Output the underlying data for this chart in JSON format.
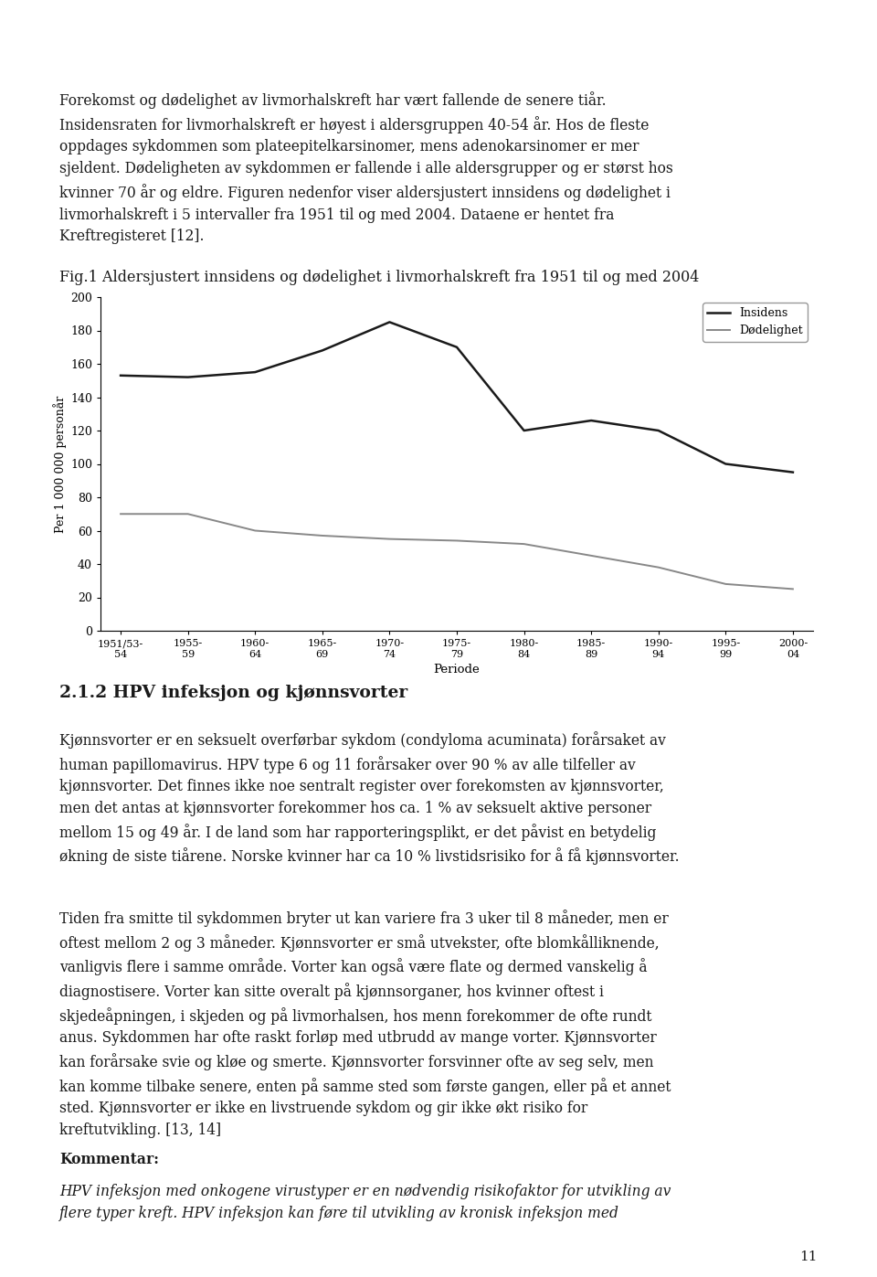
{
  "page_title_lines": [
    "Forekomst og dødelighet av livmorhalskreft har vært fallende de senere tiår.",
    "Insidensraten for livmorhalskreft er høyest i aldersgruppen 40-54 år. Hos de fleste",
    "oppdages sykdommen som plateepitelkarsinomer, mens adenokarsinomer er mer",
    "sjeldent. Dødeligheten av sykdommen er fallende i alle aldersgrupper og er størst hos",
    "kvinner 70 år og eldre. Figuren nedenfor viser aldersjustert innsidens og dødelighet i",
    "livmorhalskreft i 5 intervaller fra 1951 til og med 2004. Dataene er hentet fra",
    "Kreftregisteret [12]."
  ],
  "fig_title": "Fig.1 Aldersjustert innsidens og dødelighet i livmorhalskreft fra 1951 til og med 2004",
  "ylabel": "Per 1 000 000 personår",
  "xlabel": "Periode",
  "ylim": [
    0,
    200
  ],
  "yticks": [
    0,
    20,
    40,
    60,
    80,
    100,
    120,
    140,
    160,
    180,
    200
  ],
  "x_labels": [
    "1951/53-\n54",
    "1955-\n59",
    "1960-\n64",
    "1965-\n69",
    "1970-\n74",
    "1975-\n79",
    "1980-\n84",
    "1985-\n89",
    "1990-\n94",
    "1995-\n99",
    "2000-\n04"
  ],
  "insidens": [
    153,
    152,
    155,
    168,
    185,
    170,
    120,
    126,
    120,
    100,
    95
  ],
  "dodelighet": [
    70,
    70,
    60,
    57,
    55,
    54,
    52,
    45,
    38,
    28,
    25
  ],
  "insidens_color": "#1a1a1a",
  "dodelighet_color": "#888888",
  "legend_insidens": "Insidens",
  "legend_dodelighet": "Dødelighet",
  "section_title": "2.1.2 HPV infeksjon og kjønnsvorter",
  "body_text1_pre": "Kjønnsvorter er en seksuelt overførbar sykdom (condyloma acuminata) forårsaket av\nhuman papillomavirus. HPV type 6 og 11 forårsaker over 90 % av alle tilfeller av\nkjønnsvorter. Det finnes ikke noe sentralt register over forekomsten av kjønnsvorter,\nmen det antas at ",
  "body_text1_italic": "kjønnsvorter",
  "body_text1_post": " forekommer hos ca. 1 % av seksuelt aktive personer\nmellom 15 og 49 år. I de land som har rapporteringsplikt, er det påvist en betydelig\nøkning de siste tiårene. Norske kvinner har ca 10 % livstidsrisiko for å få kjønnsvorter.",
  "body_text2": "Tiden fra smitte til sykdommen bryter ut kan variere fra 3 uker til 8 måneder, men er\noftest mellom 2 og 3 måneder. Kjønnsvorter er små utvekster, ofte blomkålliknende,\nvanligvis flere i samme område. Vorter kan også være flate og dermed vanskelig å\ndiagnostisere. Vorter kan sitte overalt på kjønnsorganer, hos kvinner oftest i\nskjedeåpningen, i skjeden og på livmorhalsen, hos menn forekommer de ofte rundt\nanus. Sykdommen har ofte raskt forløp med utbrudd av mange vorter. Kjønnsvorter\nkan forårsake svie og kløe og smerte. Kjønnsvorter forsvinner ofte av seg selv, men\nkan komme tilbake senere, enten på samme sted som første gangen, eller på et annet\nsted. Kjønnsvorter er ikke en livstruende sykdom og gir ikke økt risiko for\nkreftutvikling. [13, 14]",
  "kommentar_label": "Kommentar:",
  "kommentar_text1": "HPV infeksjon med onkogene virustyper er en nødvendig risikofaktor for utvikling av",
  "kommentar_text2": "flere typer kreft. HPV infeksjon kan føre til utvikling av kronisk infeksjon med",
  "page_number": "11",
  "background_color": "#ffffff",
  "text_color": "#1a1a1a"
}
